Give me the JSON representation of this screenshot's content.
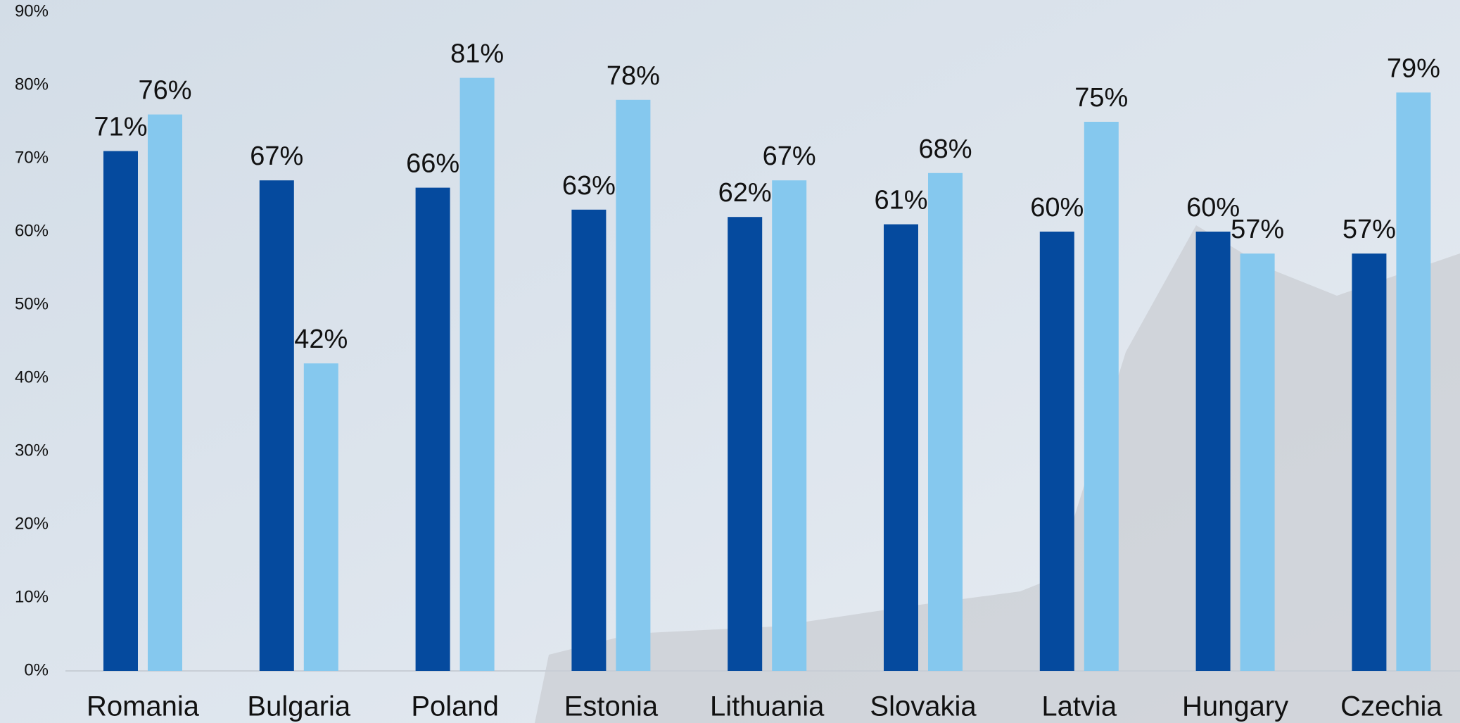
{
  "chart_data": {
    "type": "bar",
    "categories": [
      "Romania",
      "Bulgaria",
      "Poland",
      "Estonia",
      "Lithuania",
      "Slovakia",
      "Latvia",
      "Hungary",
      "Czechia"
    ],
    "series": [
      {
        "color": "#054a9e",
        "values": [
          71,
          67,
          66,
          63,
          62,
          61,
          60,
          60,
          57
        ],
        "value_labels": [
          "71%",
          "67%",
          "66%",
          "63%",
          "62%",
          "61%",
          "60%",
          "60%",
          "57%"
        ]
      },
      {
        "color": "#85c8ee",
        "values": [
          76,
          42,
          81,
          78,
          67,
          68,
          75,
          57,
          79
        ],
        "value_labels": [
          "76%",
          "42%",
          "81%",
          "78%",
          "67%",
          "68%",
          "75%",
          "57%",
          "79%"
        ]
      }
    ],
    "ylim": [
      0,
      90
    ],
    "yticks": [
      {
        "value": 0,
        "label": "0%"
      },
      {
        "value": 10,
        "label": "10%"
      },
      {
        "value": 20,
        "label": "20%"
      },
      {
        "value": 30,
        "label": "30%"
      },
      {
        "value": 40,
        "label": "40%"
      },
      {
        "value": 50,
        "label": "50%"
      },
      {
        "value": 60,
        "label": "60%"
      },
      {
        "value": 70,
        "label": "70%"
      },
      {
        "value": 80,
        "label": "80%"
      },
      {
        "value": 90,
        "label": "90%"
      }
    ],
    "grid": false
  }
}
